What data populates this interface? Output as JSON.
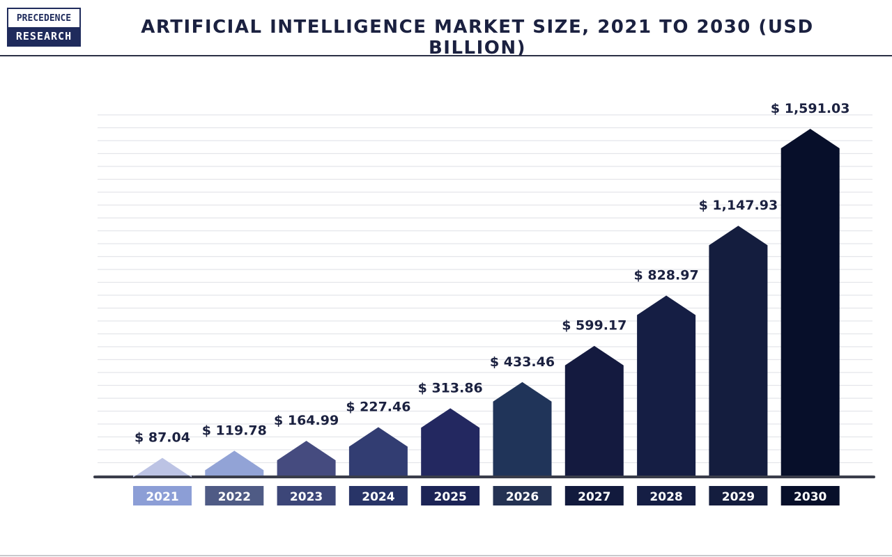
{
  "brand": {
    "line1": "PRECEDENCE",
    "line2": "RESEARCH"
  },
  "chart_data": {
    "type": "bar",
    "title": "ARTIFICIAL INTELLIGENCE MARKET SIZE, 2021 TO 2030 (USD BILLION)",
    "categories": [
      "2021",
      "2022",
      "2023",
      "2024",
      "2025",
      "2026",
      "2027",
      "2028",
      "2029",
      "2030"
    ],
    "values": [
      87.04,
      119.78,
      164.99,
      227.46,
      313.86,
      433.46,
      599.17,
      828.97,
      1147.93,
      1591.03
    ],
    "value_labels": [
      "$ 87.04",
      "$ 119.78",
      "$ 164.99",
      "$ 227.46",
      "$ 313.86",
      "$ 433.46",
      "$ 599.17",
      "$ 828.97",
      "$ 1,147.93",
      "$ 1,591.03"
    ],
    "bar_colors": [
      "#bcc3e4",
      "#92a3d6",
      "#454b7f",
      "#323d72",
      "#232860",
      "#203459",
      "#141a3f",
      "#151e44",
      "#141d3e",
      "#070f2a"
    ],
    "label_box_colors": [
      "#8c9ed6",
      "#4f5b85",
      "#3c4678",
      "#283467",
      "#1c2456",
      "#243253",
      "#121a3d",
      "#151e44",
      "#141d3e",
      "#070f2a"
    ],
    "grid": true
  }
}
